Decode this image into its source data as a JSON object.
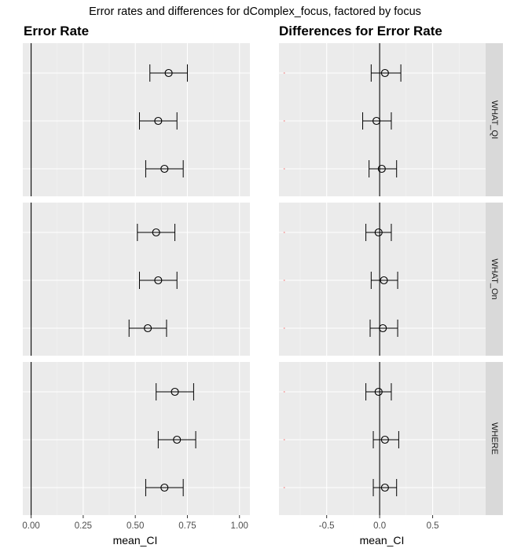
{
  "figure": {
    "title": "Error rates and differences for dComplex_focus, factored by focus"
  },
  "colors": {
    "panel_bg": "#ebebeb",
    "grid_major": "#ffffff",
    "grid_minor": "#f5f5f5",
    "strip_bg": "#d9d9d9",
    "point_stroke": "#000000",
    "faint_marker": "#f4a6a6",
    "ref_line": "#000000",
    "tick_text": "#4d4d4d"
  },
  "chart_data": [
    {
      "type": "scatter",
      "subtype": "point-with-errorbar",
      "title": "Error Rate",
      "xlabel": "mean_CI",
      "ylabel": "",
      "xlim": [
        -0.04,
        1.05
      ],
      "x_ticks": [
        0.0,
        0.25,
        0.5,
        0.75,
        1.0
      ],
      "x_tick_labels": [
        "0.00",
        "0.25",
        "0.50",
        "0.75",
        "1.00"
      ],
      "reference_line_x": 0,
      "grid": true,
      "facets": [
        "WHAT_QI",
        "WHAT_On",
        "WHERE"
      ],
      "rows_per_facet": 3,
      "series": [
        {
          "facet": "WHAT_QI",
          "points": [
            {
              "mean": 0.66,
              "lower": 0.57,
              "upper": 0.75
            },
            {
              "mean": 0.61,
              "lower": 0.52,
              "upper": 0.7
            },
            {
              "mean": 0.64,
              "lower": 0.55,
              "upper": 0.73
            }
          ]
        },
        {
          "facet": "WHAT_On",
          "points": [
            {
              "mean": 0.6,
              "lower": 0.51,
              "upper": 0.69
            },
            {
              "mean": 0.61,
              "lower": 0.52,
              "upper": 0.7
            },
            {
              "mean": 0.56,
              "lower": 0.47,
              "upper": 0.65
            }
          ]
        },
        {
          "facet": "WHERE",
          "points": [
            {
              "mean": 0.69,
              "lower": 0.6,
              "upper": 0.78
            },
            {
              "mean": 0.7,
              "lower": 0.61,
              "upper": 0.79
            },
            {
              "mean": 0.64,
              "lower": 0.55,
              "upper": 0.73
            }
          ]
        }
      ]
    },
    {
      "type": "scatter",
      "subtype": "point-with-errorbar",
      "title": "Differences for Error Rate",
      "xlabel": "mean_CI",
      "ylabel": "",
      "xlim": [
        -0.95,
        1.0
      ],
      "x_ticks": [
        -0.5,
        0.0,
        0.5
      ],
      "x_tick_labels": [
        "-0.5",
        "0.0",
        "0.5"
      ],
      "reference_line_x": 0,
      "grid": true,
      "facets": [
        "WHAT_QI",
        "WHAT_On",
        "WHERE"
      ],
      "rows_per_facet": 3,
      "faint_marker_x": -0.9,
      "series": [
        {
          "facet": "WHAT_QI",
          "points": [
            {
              "mean": 0.05,
              "lower": -0.08,
              "upper": 0.2
            },
            {
              "mean": -0.03,
              "lower": -0.16,
              "upper": 0.11
            },
            {
              "mean": 0.02,
              "lower": -0.1,
              "upper": 0.16
            }
          ]
        },
        {
          "facet": "WHAT_On",
          "points": [
            {
              "mean": -0.01,
              "lower": -0.13,
              "upper": 0.11
            },
            {
              "mean": 0.04,
              "lower": -0.08,
              "upper": 0.17
            },
            {
              "mean": 0.03,
              "lower": -0.09,
              "upper": 0.17
            }
          ]
        },
        {
          "facet": "WHERE",
          "points": [
            {
              "mean": -0.01,
              "lower": -0.13,
              "upper": 0.11
            },
            {
              "mean": 0.05,
              "lower": -0.06,
              "upper": 0.18
            },
            {
              "mean": 0.05,
              "lower": -0.06,
              "upper": 0.16
            }
          ]
        }
      ]
    }
  ]
}
